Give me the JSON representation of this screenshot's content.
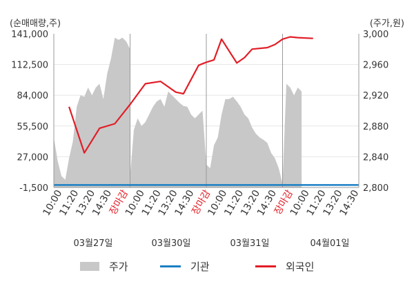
{
  "chart_data": {
    "type": "line",
    "left_axis_title": "(순매매량,주)",
    "right_axis_title": "(주가,원)",
    "left_ticks": [
      "141,000",
      "112,500",
      "84,000",
      "55,500",
      "27,000",
      "-1,500"
    ],
    "left_tick_values": [
      141000,
      112500,
      84000,
      55500,
      27000,
      -1500
    ],
    "right_ticks": [
      "3,000",
      "2,960",
      "2,920",
      "2,880",
      "2,840",
      "2,800"
    ],
    "right_tick_values": [
      3000,
      2960,
      2920,
      2880,
      2840,
      2800
    ],
    "left_ylim": [
      -1500,
      141000
    ],
    "right_ylim": [
      2800,
      3000
    ],
    "x_tick_labels": [
      "10:00",
      "11:20",
      "13:20",
      "14:30",
      "장마감",
      "10:00",
      "11:20",
      "13:20",
      "14:30",
      "장마감",
      "10:00",
      "11:20",
      "13:20",
      "14:30",
      "장마감",
      "10:00",
      "11:20",
      "13:20",
      "14:30"
    ],
    "x_tick_marker": "장마감",
    "dates": [
      "03월27일",
      "03월30일",
      "03월31일",
      "04월01일"
    ],
    "x_count": 40,
    "day_boundaries": [
      10,
      20,
      30
    ],
    "grid": true,
    "legend_placement": "bottom",
    "series": [
      {
        "name": "주가",
        "kind": "area",
        "axis": "right",
        "color": "#c8c8c8",
        "x": [
          0.0,
          0.5,
          1.0,
          1.5,
          2.0,
          2.5,
          3.0,
          3.5,
          4.0,
          4.5,
          5.0,
          5.5,
          6.0,
          6.5,
          7.0,
          7.5,
          8.0,
          8.5,
          9.0,
          9.5,
          10.0,
          10.0,
          10.5,
          11.0,
          11.5,
          12.0,
          12.5,
          13.0,
          13.5,
          14.0,
          14.5,
          15.0,
          15.5,
          16.0,
          16.5,
          17.0,
          17.5,
          18.0,
          18.5,
          19.0,
          19.5,
          20.0,
          20.0,
          20.5,
          21.0,
          21.5,
          22.0,
          22.5,
          23.0,
          23.5,
          24.0,
          24.5,
          25.0,
          25.5,
          26.0,
          26.5,
          27.0,
          27.5,
          28.0,
          28.5,
          29.0,
          29.5,
          30.0,
          30.0,
          30.5,
          31.0,
          31.5,
          32.0,
          32.5
        ],
        "values": [
          2865,
          2835,
          2815,
          2810,
          2838,
          2860,
          2905,
          2920,
          2918,
          2930,
          2920,
          2930,
          2935,
          2915,
          2948,
          2968,
          2995,
          2992,
          2995,
          2990,
          2980,
          2815,
          2875,
          2890,
          2880,
          2885,
          2895,
          2905,
          2912,
          2915,
          2905,
          2925,
          2920,
          2915,
          2910,
          2906,
          2905,
          2895,
          2890,
          2895,
          2900,
          2830,
          2830,
          2825,
          2855,
          2865,
          2895,
          2915,
          2915,
          2918,
          2912,
          2905,
          2895,
          2890,
          2878,
          2870,
          2865,
          2862,
          2858,
          2845,
          2838,
          2825,
          2805,
          2805,
          2935,
          2930,
          2920,
          2930,
          2925
        ]
      },
      {
        "name": "기관",
        "kind": "line",
        "axis": "left",
        "color": "#1a7fc4",
        "x": [
          0,
          40
        ],
        "values": [
          800,
          800
        ]
      },
      {
        "name": "외국인",
        "kind": "line",
        "axis": "right",
        "color": "#e21d26",
        "x": [
          2,
          4,
          6,
          8,
          10,
          12,
          14,
          16,
          17,
          19,
          20,
          21,
          22,
          24,
          25,
          26,
          28,
          29,
          30,
          31,
          32,
          34
        ],
        "values": [
          2905,
          2845,
          2877,
          2883,
          2908,
          2935,
          2938,
          2924,
          2922,
          2959,
          2963,
          2966,
          2993,
          2962,
          2969,
          2980,
          2982,
          2986,
          2993,
          2996,
          2995,
          2994
        ]
      }
    ]
  },
  "legend": [
    {
      "label": "주가",
      "icon": "area-swatch",
      "color": "#c8c8c8"
    },
    {
      "label": "기관",
      "icon": "line-swatch",
      "color": "#1a7fc4"
    },
    {
      "label": "외국인",
      "icon": "line-swatch",
      "color": "#e21d26"
    }
  ],
  "colors": {
    "axis_text": "#333333",
    "marker_text": "#e21d26",
    "grid": "#e6e6e6",
    "day_divider": "#999999",
    "plot_border": "#999999"
  }
}
